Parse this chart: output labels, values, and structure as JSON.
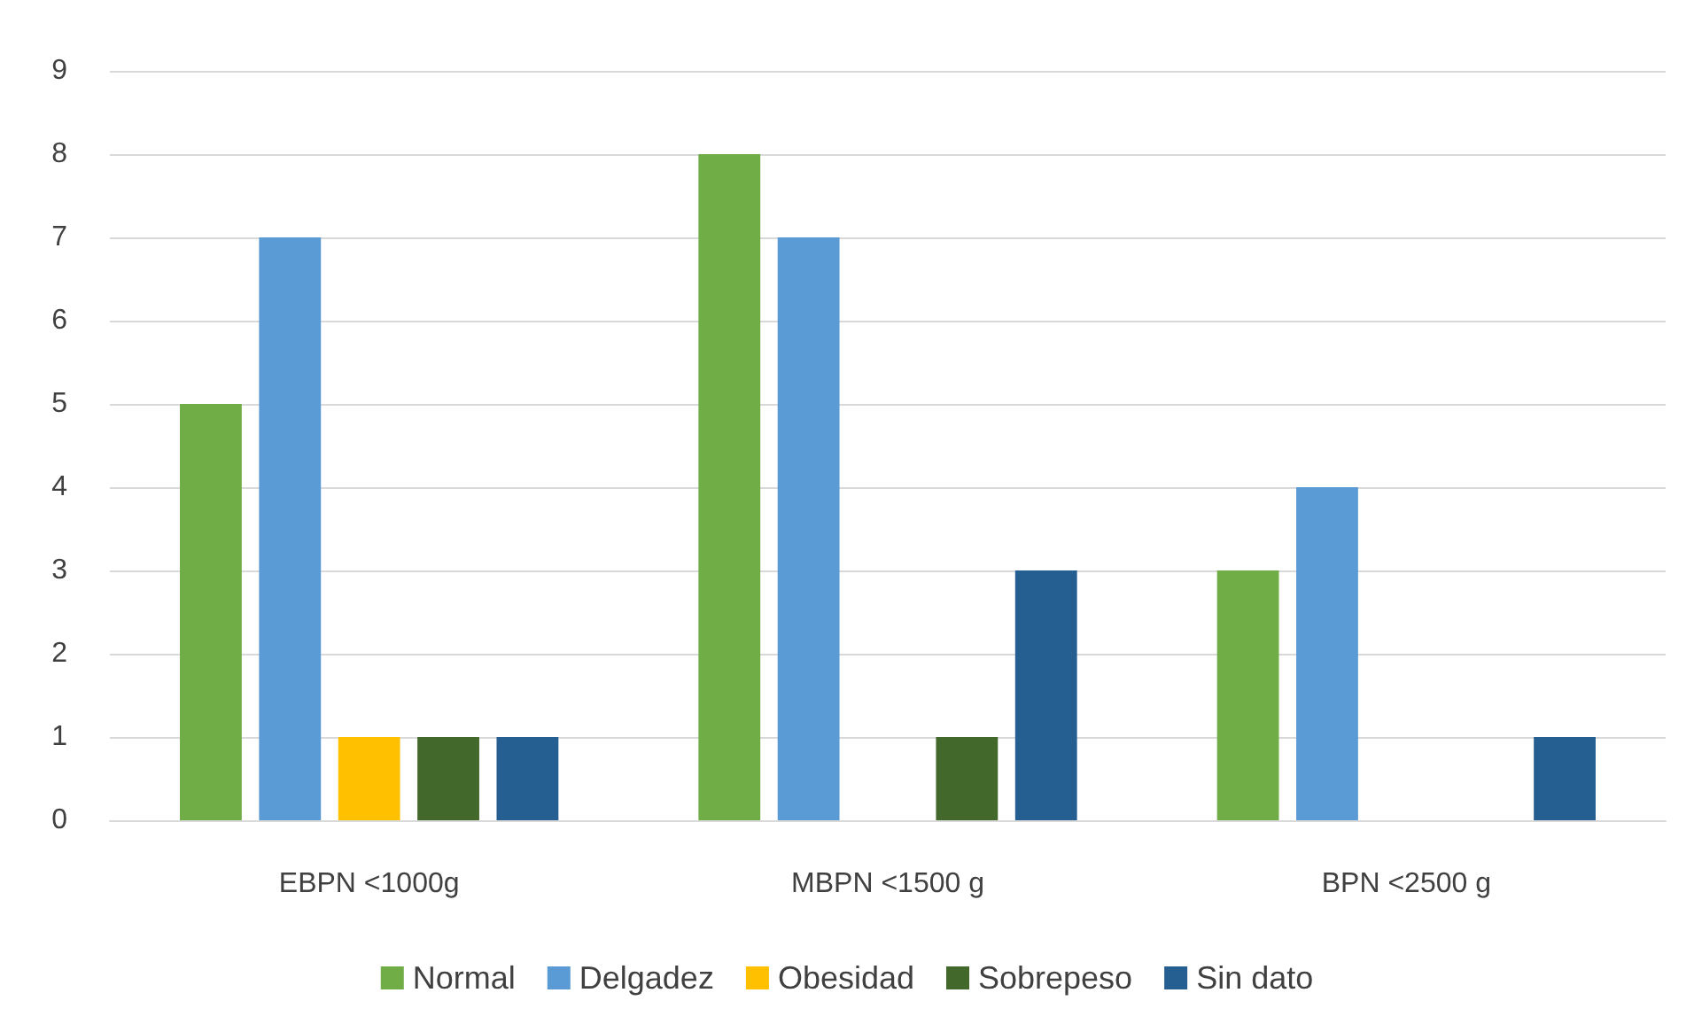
{
  "chart_data": {
    "type": "bar",
    "categories": [
      "EBPN <1000g",
      "MBPN <1500 g",
      "BPN <2500 g"
    ],
    "series": [
      {
        "name": "Normal",
        "color": "#70ad47",
        "values": [
          5,
          8,
          3
        ]
      },
      {
        "name": "Delgadez",
        "color": "#5b9bd5",
        "values": [
          7,
          7,
          4
        ]
      },
      {
        "name": "Obesidad",
        "color": "#ffc000",
        "values": [
          1,
          0,
          0
        ]
      },
      {
        "name": "Sobrepeso",
        "color": "#43682b",
        "values": [
          1,
          1,
          0
        ]
      },
      {
        "name": "Sin dato",
        "color": "#255e91",
        "values": [
          1,
          3,
          1
        ]
      }
    ],
    "ylim": [
      0,
      9
    ],
    "yticks": [
      0,
      1,
      2,
      3,
      4,
      5,
      6,
      7,
      8,
      9
    ],
    "grid": "y",
    "legend": "bottom"
  }
}
